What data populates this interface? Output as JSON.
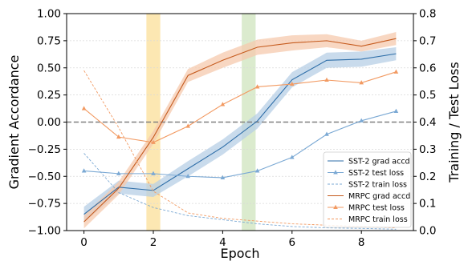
{
  "chart_data": {
    "type": "line",
    "xlabel": "Epoch",
    "ylabel_left": "Gradient Accordance",
    "ylabel_right": "Training / Test Loss",
    "xlim": [
      -0.5,
      9.5
    ],
    "ylim_left": [
      -1.0,
      1.0
    ],
    "ylim_right": [
      0.0,
      0.8
    ],
    "xticks": [
      0,
      2,
      4,
      6,
      8
    ],
    "xtick_labels": [
      "0",
      "2",
      "4",
      "6",
      "8"
    ],
    "yticks_left": [
      -1.0,
      -0.75,
      -0.5,
      -0.25,
      0.0,
      0.25,
      0.5,
      0.75,
      1.0
    ],
    "ytick_labels_left": [
      "−1.00",
      "−0.75",
      "−0.50",
      "−0.25",
      "0.00",
      "0.25",
      "0.50",
      "0.75",
      "1.00"
    ],
    "yticks_right": [
      0.0,
      0.1,
      0.2,
      0.3,
      0.4,
      0.5,
      0.6,
      0.7,
      0.8
    ],
    "ytick_labels_right": [
      "0.0",
      "0.1",
      "0.2",
      "0.3",
      "0.4",
      "0.5",
      "0.6",
      "0.7",
      "0.8"
    ],
    "grid": true,
    "legend_position": "lower-right",
    "reference_line": {
      "axis": "left",
      "y": 0.0,
      "style": "dashed",
      "color": "#808080"
    },
    "highlight_bands": [
      {
        "x0": 1.8,
        "x1": 2.2,
        "color": "#fce3a4"
      },
      {
        "x0": 4.55,
        "x1": 4.95,
        "color": "#d5e8c6"
      }
    ],
    "x": [
      0,
      1,
      2,
      3,
      4,
      5,
      6,
      7,
      8,
      9
    ],
    "series": [
      {
        "name": "SST-2 grad accd",
        "axis": "left",
        "style": "solid",
        "marker": "none",
        "color": "#2e6ea8",
        "band_color": "#b7cfe6",
        "values": [
          -0.85,
          -0.6,
          -0.63,
          -0.43,
          -0.23,
          0.01,
          0.39,
          0.57,
          0.58,
          0.63
        ],
        "band": [
          0.07,
          0.06,
          0.06,
          0.07,
          0.07,
          0.07,
          0.07,
          0.07,
          0.07,
          0.06
        ]
      },
      {
        "name": "SST-2 test loss",
        "axis": "right",
        "style": "solid",
        "marker": "triangle",
        "color": "#7ba9d4",
        "values": [
          0.22,
          0.21,
          0.21,
          0.2,
          0.195,
          0.22,
          0.27,
          0.355,
          0.405,
          0.44
        ]
      },
      {
        "name": "SST-2 train loss",
        "axis": "right",
        "style": "dashed",
        "marker": "none",
        "color": "#7ba9d4",
        "values": [
          0.285,
          0.14,
          0.085,
          0.055,
          0.04,
          0.025,
          0.015,
          0.01,
          0.008,
          0.005
        ]
      },
      {
        "name": "MRPC grad accd",
        "axis": "left",
        "style": "solid",
        "marker": "none",
        "color": "#c55a1d",
        "band_color": "#f5c9ad",
        "values": [
          -0.92,
          -0.61,
          -0.14,
          0.43,
          0.57,
          0.69,
          0.73,
          0.75,
          0.7,
          0.77
        ],
        "band": [
          0.06,
          0.06,
          0.06,
          0.06,
          0.07,
          0.07,
          0.07,
          0.06,
          0.05,
          0.06
        ]
      },
      {
        "name": "MRPC test loss",
        "axis": "right",
        "style": "solid",
        "marker": "triangle",
        "color": "#f29a62",
        "values": [
          0.45,
          0.345,
          0.325,
          0.385,
          0.465,
          0.53,
          0.54,
          0.555,
          0.545,
          0.585
        ]
      },
      {
        "name": "MRPC train loss",
        "axis": "right",
        "style": "dashed",
        "marker": "none",
        "color": "#f29a62",
        "values": [
          0.59,
          0.38,
          0.145,
          0.065,
          0.045,
          0.035,
          0.025,
          0.02,
          0.015,
          0.01
        ]
      }
    ]
  }
}
